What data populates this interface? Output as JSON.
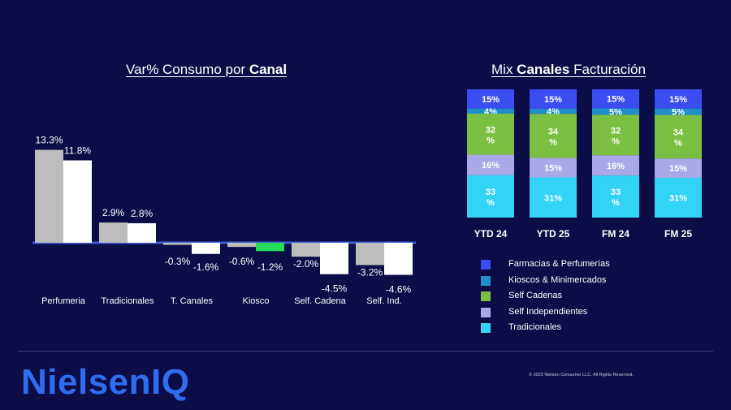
{
  "left_title": {
    "prefix": "Var% Consumo por ",
    "bold": "Canal"
  },
  "right_title": {
    "prefix": "Mix ",
    "bold": "Canales",
    "suffix": " Facturación"
  },
  "chart_data": [
    {
      "type": "bar",
      "title": "Var% Consumo por Canal",
      "categories": [
        "Perfumeria",
        "Tradicionales",
        "T. Canales",
        "Kiosco",
        "Self. Cadena",
        "Self. Ind."
      ],
      "series": [
        {
          "values": [
            13.3,
            2.9,
            -0.3,
            -0.6,
            -2.0,
            -3.2
          ],
          "color": "#bdbdbd",
          "labels": [
            "13.3%",
            "2.9%",
            "-0.3%",
            "-0.6%",
            "-2.0%",
            "-3.2%"
          ]
        },
        {
          "values": [
            11.8,
            2.8,
            -1.6,
            -1.2,
            -4.5,
            -4.6
          ],
          "color": "#ffffff",
          "labels": [
            "11.8%",
            "2.8%",
            "-1.6%",
            "-1.2%",
            "-4.5%",
            "-4.6%"
          ],
          "highlight": {
            "Kiosco": "#22dd55"
          }
        }
      ],
      "zero_line_color": "#3d5bd6"
    },
    {
      "type": "bar",
      "stacked": true,
      "title": "Mix Canales Facturación",
      "categories": [
        "YTD 24",
        "YTD 25",
        "FM 24",
        "FM 25"
      ],
      "series": [
        {
          "name": "Farmacias & Perfumerías",
          "color": "#3b4cf0",
          "values": [
            15,
            15,
            15,
            15
          ],
          "labels": [
            "15%",
            "15%",
            "15%",
            "15%"
          ]
        },
        {
          "name": "Kioscos & Minimercados",
          "color": "#1e8fc8",
          "values": [
            4,
            4,
            5,
            5
          ],
          "labels": [
            "4%",
            "4%",
            "5%",
            "5%"
          ]
        },
        {
          "name": "Self Cadenas",
          "color": "#7cc043",
          "values": [
            32,
            34,
            32,
            34
          ],
          "labels": [
            "32\n%",
            "34\n%",
            "32\n%",
            "34\n%"
          ]
        },
        {
          "name": "Self Independientes",
          "color": "#a9a8e8",
          "values": [
            16,
            15,
            16,
            15
          ],
          "labels": [
            "16%",
            "15%",
            "16%",
            "15%"
          ]
        },
        {
          "name": "Tradicionales",
          "color": "#33d3f5",
          "values": [
            33,
            31,
            33,
            31
          ],
          "labels": [
            "33\n%",
            "31%",
            "33\n%",
            "31%"
          ]
        }
      ],
      "legend_placement": "bottom"
    }
  ],
  "legend": [
    {
      "label": "Farmacias & Perfumerías",
      "color": "#3b4cf0"
    },
    {
      "label": "Kioscos & Minimercados",
      "color": "#1e8fc8"
    },
    {
      "label": "Self Cadenas",
      "color": "#7cc043"
    },
    {
      "label": "Self Independientes",
      "color": "#a9a8e8"
    },
    {
      "label": "Tradicionales",
      "color": "#33d3f5"
    }
  ],
  "footer": {
    "logo_text": "NielsenIQ",
    "copyright": "© 2023 Nielsen Consumer LLC. All Rights Reserved."
  }
}
